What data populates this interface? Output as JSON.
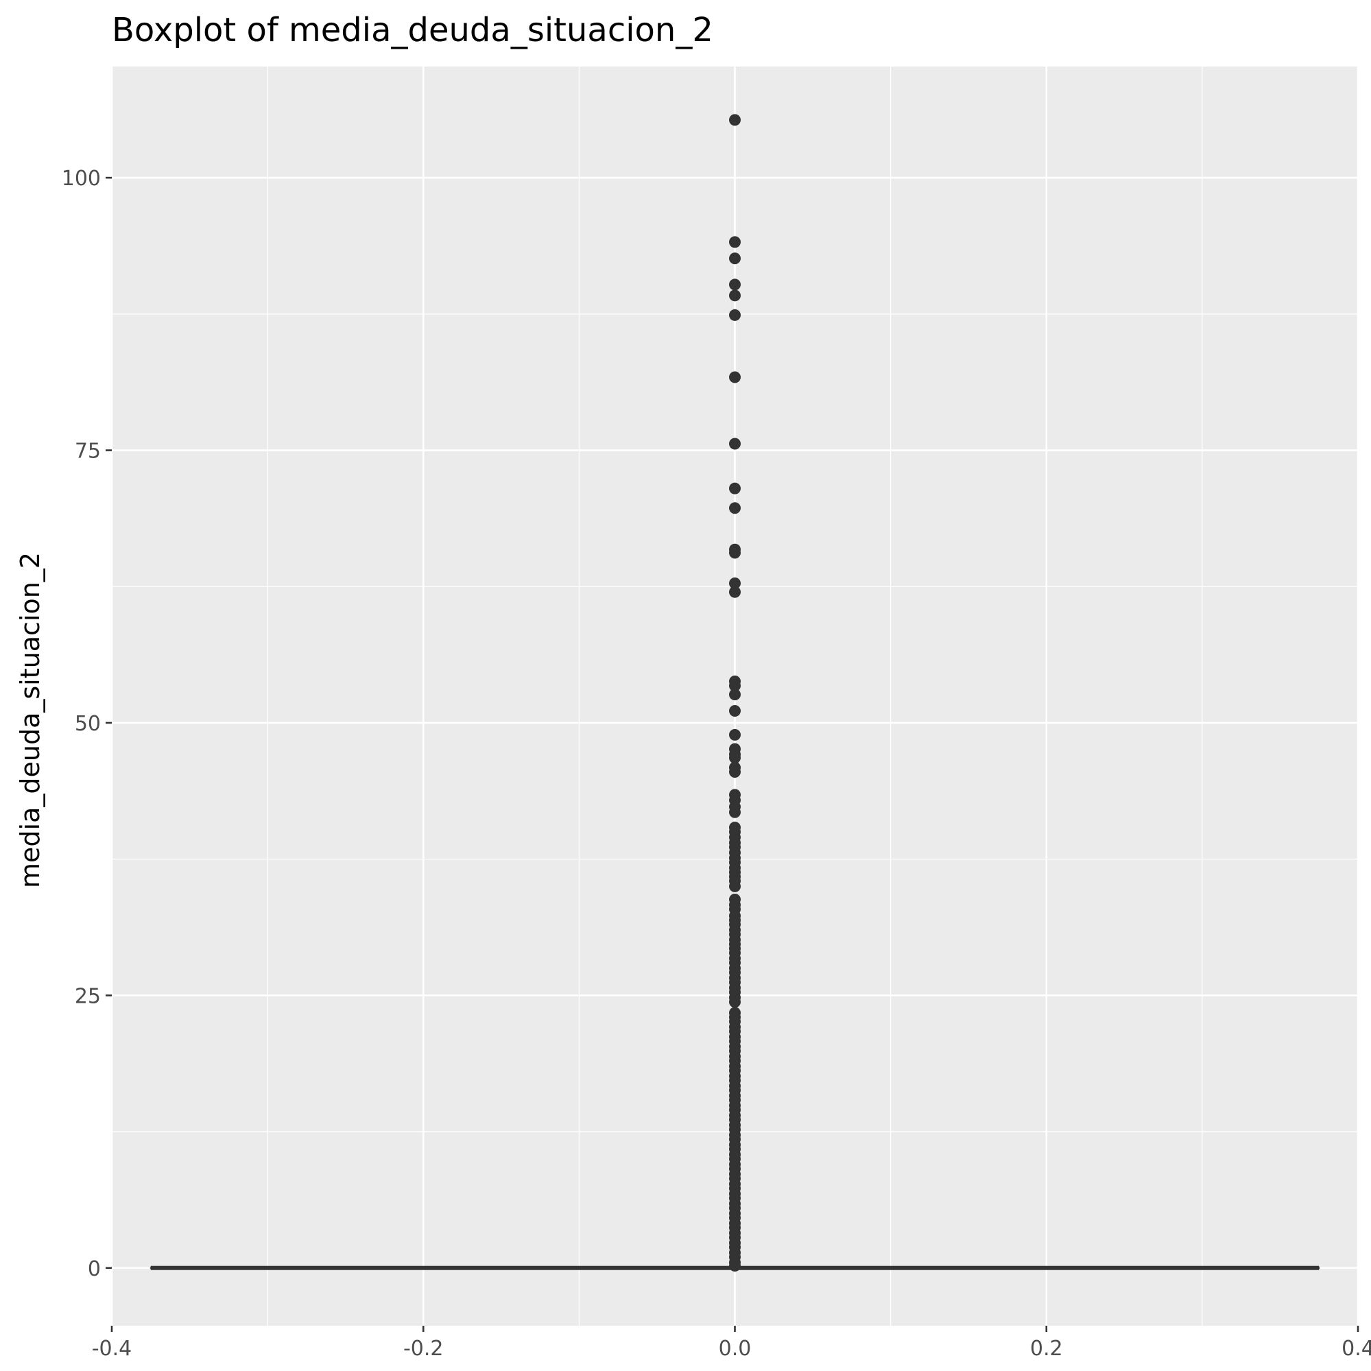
{
  "chart_data": {
    "type": "boxplot",
    "title": "Boxplot of media_deuda_situacion_2",
    "xlabel": "",
    "ylabel": "media_deuda_situacion_2",
    "xlim": [
      -0.4,
      0.4
    ],
    "ylim": [
      -5.3,
      110.2
    ],
    "x_ticks": [
      -0.4,
      -0.2,
      0.0,
      0.2,
      0.4
    ],
    "x_tick_labels": [
      "-0.4",
      "-0.2",
      "0.0",
      "0.2",
      "0.4"
    ],
    "y_ticks": [
      0,
      25,
      50,
      75,
      100
    ],
    "y_tick_labels": [
      "0",
      "25",
      "50",
      "75",
      "100"
    ],
    "grid": true,
    "box": {
      "x": 0.0,
      "xmin": -0.375,
      "xmax": 0.375,
      "q1": 0,
      "median": 0,
      "q3": 0,
      "whisker_low": 0,
      "whisker_high": 0
    },
    "outliers": [
      105.3,
      94.1,
      92.6,
      90.2,
      89.2,
      87.4,
      81.7,
      75.6,
      71.5,
      69.7,
      65.9,
      65.6,
      62.8,
      62.0,
      53.8,
      53.4,
      52.6,
      51.1,
      48.9,
      47.6,
      47.1,
      46.8,
      45.9,
      45.5,
      43.4,
      42.9,
      42.3,
      41.8,
      40.4,
      40.0,
      39.5,
      39.0,
      38.6,
      38.1,
      37.6,
      37.2,
      36.7,
      36.3,
      35.9,
      35.5,
      35.0,
      33.8,
      33.3,
      32.9,
      32.3,
      31.9,
      31.5,
      31.0,
      30.6,
      30.1,
      29.7,
      29.3,
      28.9,
      28.4,
      28.0,
      27.5,
      27.1,
      26.6,
      26.2,
      25.7,
      25.3,
      24.8,
      24.4,
      23.4,
      23.0,
      22.6,
      22.1,
      21.7,
      21.2,
      20.8,
      20.3,
      19.9,
      19.4,
      19.0,
      18.5,
      18.1,
      17.6,
      17.2,
      16.7,
      16.3,
      15.8,
      15.4,
      14.9,
      14.5,
      14.0,
      13.6,
      13.1,
      12.7,
      12.2,
      11.8,
      11.3,
      10.9,
      10.4,
      10.0,
      9.5,
      9.1,
      8.6,
      8.2,
      7.7,
      7.3,
      6.8,
      6.4,
      5.9,
      5.5,
      5.0,
      4.6,
      4.1,
      3.7,
      3.2,
      2.8,
      2.3,
      1.9,
      1.4,
      1.0,
      0.5,
      0.2
    ],
    "colors": {
      "panel": "#ebebeb",
      "grid": "#ffffff",
      "box": "#333333",
      "points": "#333333",
      "ticks": "#333333"
    }
  }
}
